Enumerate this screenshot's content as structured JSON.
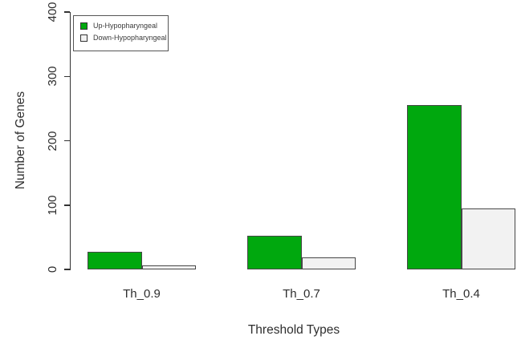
{
  "chart_data": {
    "type": "bar",
    "title": "",
    "xlabel": "Threshold Types",
    "ylabel": "Number of Genes",
    "categories": [
      "Th_0.9",
      "Th_0.7",
      "Th_0.4"
    ],
    "series": [
      {
        "name": "Up-Hypopharyngeal",
        "color": "#00A80E",
        "values": [
          27,
          52,
          255
        ]
      },
      {
        "name": "Down-Hypopharyngeal",
        "color": "#F2F2F2",
        "values": [
          6,
          19,
          95
        ]
      }
    ],
    "ylim": [
      0,
      400
    ],
    "yticks": [
      0,
      100,
      200,
      300,
      400
    ],
    "grid": false,
    "legend_position": "top-left",
    "bar_border_color": "#474747",
    "axis_color": "#333333"
  }
}
